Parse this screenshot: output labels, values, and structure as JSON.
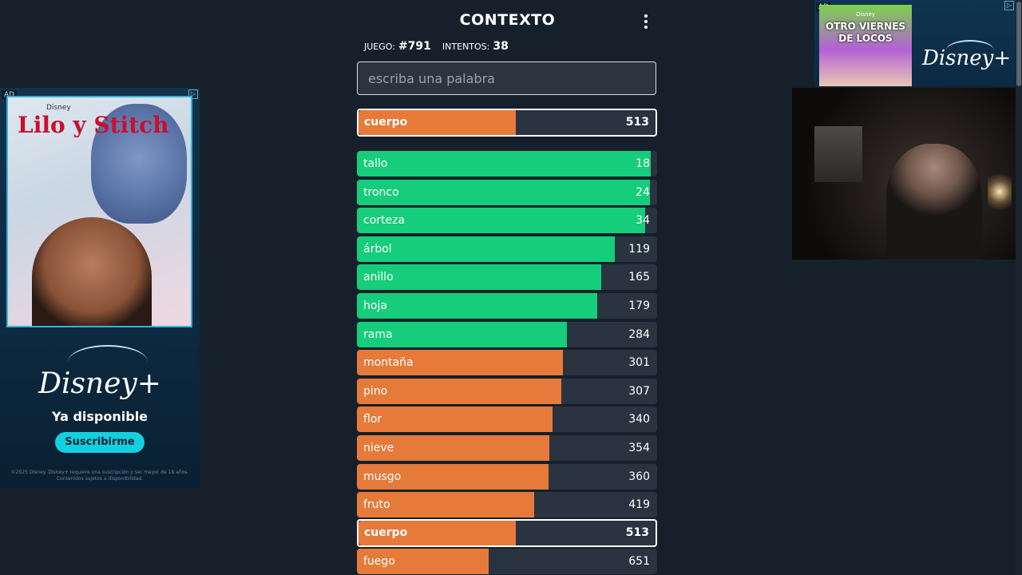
{
  "header": {
    "title": "CONTEXTO"
  },
  "game": {
    "game_label": "JUEGO:",
    "game_number": "#791",
    "attempts_label": "INTENTOS:",
    "attempts": "38"
  },
  "search": {
    "placeholder": "escriba una palabra"
  },
  "last_guess": {
    "word": "cuerpo",
    "distance": "513",
    "fill": 0.53,
    "color": "orange"
  },
  "guesses": [
    {
      "word": "tallo",
      "distance": "18",
      "fill": 0.98,
      "color": "green"
    },
    {
      "word": "tronco",
      "distance": "24",
      "fill": 0.975,
      "color": "green"
    },
    {
      "word": "corteza",
      "distance": "34",
      "fill": 0.96,
      "color": "green"
    },
    {
      "word": "árbol",
      "distance": "119",
      "fill": 0.86,
      "color": "green"
    },
    {
      "word": "anillo",
      "distance": "165",
      "fill": 0.815,
      "color": "green"
    },
    {
      "word": "hoja",
      "distance": "179",
      "fill": 0.8,
      "color": "green"
    },
    {
      "word": "rama",
      "distance": "284",
      "fill": 0.7,
      "color": "green"
    },
    {
      "word": "montaña",
      "distance": "301",
      "fill": 0.685,
      "color": "orange"
    },
    {
      "word": "pino",
      "distance": "307",
      "fill": 0.68,
      "color": "orange"
    },
    {
      "word": "flor",
      "distance": "340",
      "fill": 0.652,
      "color": "orange"
    },
    {
      "word": "nieve",
      "distance": "354",
      "fill": 0.64,
      "color": "orange"
    },
    {
      "word": "musgo",
      "distance": "360",
      "fill": 0.637,
      "color": "orange"
    },
    {
      "word": "fruto",
      "distance": "419",
      "fill": 0.59,
      "color": "orange"
    },
    {
      "word": "cuerpo",
      "distance": "513",
      "fill": 0.53,
      "color": "orange",
      "current": true
    },
    {
      "word": "fuego",
      "distance": "651",
      "fill": 0.44,
      "color": "orange"
    }
  ],
  "colors": {
    "green": "#15cd7a",
    "orange": "#e67a3a",
    "bar_bg": "#2a3440",
    "background": "#15202b"
  },
  "ad_left": {
    "label": "AD",
    "brand_small": "Disney",
    "movie_title": "Lilo y Stitch",
    "logo": "Disney+",
    "tagline": "Ya disponible",
    "cta": "Suscribirme",
    "fine_print": "©2025 Disney. Disney+ requiere una suscripción y ser mayor de 18 años. Contenidos sujetos a disponibilidad."
  },
  "ad_right": {
    "label": "AD",
    "brand_small": "Disney",
    "movie_title": "OTRO VIERNES DE LOCOS",
    "logo": "Disney+"
  },
  "icons": {
    "menu": "kebab-menu-icon",
    "ad_close": "adchoices-icon"
  }
}
